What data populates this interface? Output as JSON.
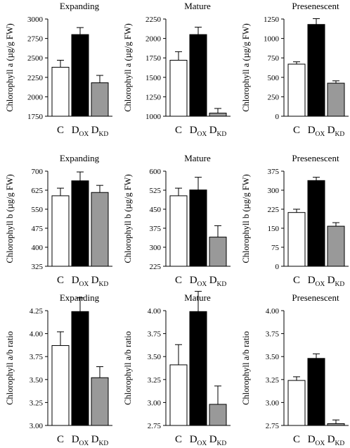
{
  "chart_data": [
    {
      "type": "bar",
      "title": "Expanding",
      "ylabel": "Chlorophyll a (µg/g FW)",
      "ylim": [
        1750,
        3000
      ],
      "yticks": [
        1750,
        2000,
        2250,
        2500,
        2750,
        3000
      ],
      "ytick_labels": [
        "1750",
        "2000",
        "2250",
        "2500",
        "2750",
        "3000"
      ],
      "categories": [
        {
          "base": "C",
          "sub": ""
        },
        {
          "base": "D",
          "sub": "OX"
        },
        {
          "base": "D",
          "sub": "KD"
        }
      ],
      "values": [
        2380,
        2800,
        2180
      ],
      "errors": [
        90,
        90,
        95
      ],
      "colors": [
        "#ffffff",
        "#000000",
        "#999999"
      ]
    },
    {
      "type": "bar",
      "title": "Mature",
      "ylabel": "Chlorophyll a (µg/g FW)",
      "ylim": [
        1000,
        2250
      ],
      "yticks": [
        1000,
        1250,
        1500,
        1750,
        2000,
        2250
      ],
      "ytick_labels": [
        "1000",
        "1250",
        "1500",
        "1750",
        "2000",
        "2250"
      ],
      "categories": [
        {
          "base": "C",
          "sub": ""
        },
        {
          "base": "D",
          "sub": "OX"
        },
        {
          "base": "D",
          "sub": "KD"
        }
      ],
      "values": [
        1720,
        2050,
        1040
      ],
      "errors": [
        110,
        95,
        60
      ],
      "colors": [
        "#ffffff",
        "#000000",
        "#999999"
      ]
    },
    {
      "type": "bar",
      "title": "Presenescent",
      "ylabel": "Chlorophyll a (µg/g FW)",
      "ylim": [
        0,
        1250
      ],
      "yticks": [
        0,
        250,
        500,
        750,
        1000,
        1250
      ],
      "ytick_labels": [
        "0",
        "250",
        "500",
        "750",
        "1000",
        "1250"
      ],
      "categories": [
        {
          "base": "C",
          "sub": ""
        },
        {
          "base": "D",
          "sub": "OX"
        },
        {
          "base": "D",
          "sub": "KD"
        }
      ],
      "values": [
        670,
        1180,
        425
      ],
      "errors": [
        30,
        75,
        30
      ],
      "colors": [
        "#ffffff",
        "#000000",
        "#999999"
      ]
    },
    {
      "type": "bar",
      "title": "Expanding",
      "ylabel": "Chlorophyll b (µg/g FW)",
      "ylim": [
        325,
        700
      ],
      "yticks": [
        325,
        400,
        475,
        550,
        625,
        700
      ],
      "ytick_labels": [
        "325",
        "400",
        "475",
        "550",
        "625",
        "700"
      ],
      "categories": [
        {
          "base": "C",
          "sub": ""
        },
        {
          "base": "D",
          "sub": "OX"
        },
        {
          "base": "D",
          "sub": "KD"
        }
      ],
      "values": [
        603,
        662,
        616
      ],
      "errors": [
        30,
        35,
        28
      ],
      "colors": [
        "#ffffff",
        "#000000",
        "#999999"
      ]
    },
    {
      "type": "bar",
      "title": "Mature",
      "ylabel": "Chlorophyll b (µg/g FW)",
      "ylim": [
        225,
        600
      ],
      "yticks": [
        225,
        300,
        375,
        450,
        525,
        600
      ],
      "ytick_labels": [
        "225",
        "300",
        "375",
        "450",
        "525",
        "600"
      ],
      "categories": [
        {
          "base": "C",
          "sub": ""
        },
        {
          "base": "D",
          "sub": "OX"
        },
        {
          "base": "D",
          "sub": "KD"
        }
      ],
      "values": [
        503,
        526,
        340
      ],
      "errors": [
        30,
        50,
        45
      ],
      "colors": [
        "#ffffff",
        "#000000",
        "#999999"
      ]
    },
    {
      "type": "bar",
      "title": "Presenescent",
      "ylabel": "Chlorophyll b (µg/g FW)",
      "ylim": [
        0,
        375
      ],
      "yticks": [
        0,
        75,
        150,
        225,
        300,
        375
      ],
      "ytick_labels": [
        "0",
        "75",
        "150",
        "225",
        "300",
        "375"
      ],
      "categories": [
        {
          "base": "C",
          "sub": ""
        },
        {
          "base": "D",
          "sub": "OX"
        },
        {
          "base": "D",
          "sub": "KD"
        }
      ],
      "values": [
        212,
        338,
        158
      ],
      "errors": [
        13,
        13,
        14
      ],
      "colors": [
        "#ffffff",
        "#000000",
        "#999999"
      ]
    },
    {
      "type": "bar",
      "title": "Expanding",
      "ylabel": "Chlorophyll a/b ratio",
      "ylim": [
        3.0,
        4.25
      ],
      "yticks": [
        3.0,
        3.25,
        3.5,
        3.75,
        4.0,
        4.25
      ],
      "ytick_labels": [
        "3.00",
        "3.25",
        "3.50",
        "3.75",
        "4.00",
        "4.25"
      ],
      "categories": [
        {
          "base": "C",
          "sub": ""
        },
        {
          "base": "D",
          "sub": "OX"
        },
        {
          "base": "D",
          "sub": "KD"
        }
      ],
      "values": [
        3.87,
        4.24,
        3.52
      ],
      "errors": [
        0.15,
        0.15,
        0.12
      ],
      "colors": [
        "#ffffff",
        "#000000",
        "#999999"
      ]
    },
    {
      "type": "bar",
      "title": "Mature",
      "ylabel": "Chlorophyll a/b ratio",
      "ylim": [
        2.75,
        4.0
      ],
      "yticks": [
        2.75,
        3.0,
        3.25,
        3.5,
        3.75,
        4.0
      ],
      "ytick_labels": [
        "2.75",
        "3.00",
        "3.25",
        "3.50",
        "3.75",
        "4.00"
      ],
      "categories": [
        {
          "base": "C",
          "sub": ""
        },
        {
          "base": "D",
          "sub": "OX"
        },
        {
          "base": "D",
          "sub": "KD"
        }
      ],
      "values": [
        3.41,
        3.99,
        2.98
      ],
      "errors": [
        0.22,
        0.22,
        0.2
      ],
      "colors": [
        "#ffffff",
        "#000000",
        "#999999"
      ]
    },
    {
      "type": "bar",
      "title": "Presenescent",
      "ylabel": "Chlorophyll a/b ratio",
      "ylim": [
        2.75,
        4.0
      ],
      "yticks": [
        2.75,
        3.0,
        3.25,
        3.5,
        3.75,
        4.0
      ],
      "ytick_labels": [
        "2.75",
        "3.00",
        "3.25",
        "3.50",
        "3.75",
        "4.00"
      ],
      "categories": [
        {
          "base": "C",
          "sub": ""
        },
        {
          "base": "D",
          "sub": "OX"
        },
        {
          "base": "D",
          "sub": "KD"
        }
      ],
      "values": [
        3.24,
        3.48,
        2.77
      ],
      "errors": [
        0.04,
        0.05,
        0.04
      ],
      "colors": [
        "#ffffff",
        "#000000",
        "#999999"
      ]
    }
  ]
}
